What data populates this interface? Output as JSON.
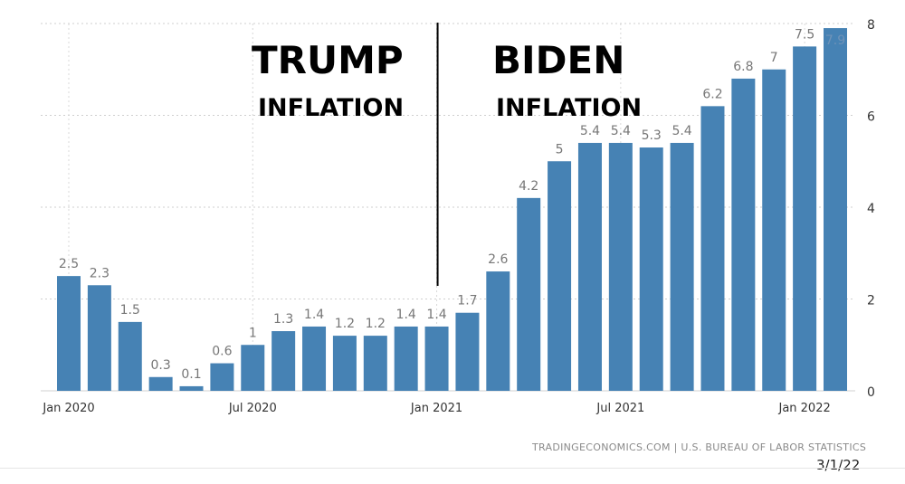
{
  "chart_data": {
    "type": "bar",
    "categories": [
      "Jan 2020",
      "Feb 2020",
      "Mar 2020",
      "Apr 2020",
      "May 2020",
      "Jun 2020",
      "Jul 2020",
      "Aug 2020",
      "Sep 2020",
      "Oct 2020",
      "Nov 2020",
      "Dec 2020",
      "Jan 2021",
      "Feb 2021",
      "Mar 2021",
      "Apr 2021",
      "May 2021",
      "Jun 2021",
      "Jul 2021",
      "Aug 2021",
      "Sep 2021",
      "Oct 2021",
      "Nov 2021",
      "Dec 2021",
      "Jan 2022",
      "Feb 2022"
    ],
    "values": [
      2.5,
      2.3,
      1.5,
      0.3,
      0.1,
      0.6,
      1,
      1.3,
      1.4,
      1.2,
      1.2,
      1.4,
      1.4,
      1.7,
      2.6,
      4.2,
      5,
      5.4,
      5.4,
      5.3,
      5.4,
      6.2,
      6.8,
      7,
      7.5,
      7.9
    ],
    "data_labels": [
      "2.5",
      "2.3",
      "1.5",
      "0.3",
      "0.1",
      "0.6",
      "1",
      "1.3",
      "1.4",
      "1.2",
      "1.2",
      "1.4",
      "1.4",
      "1.7",
      "2.6",
      "4.2",
      "5",
      "5.4",
      "5.4",
      "5.3",
      "5.4",
      "6.2",
      "6.8",
      "7",
      "7.5",
      "7.9"
    ],
    "x_tick_labels": [
      {
        "index": 0,
        "label": "Jan 2020"
      },
      {
        "index": 6,
        "label": "Jul 2020"
      },
      {
        "index": 12,
        "label": "Jan 2021"
      },
      {
        "index": 18,
        "label": "Jul 2021"
      },
      {
        "index": 24,
        "label": "Jan 2022"
      }
    ],
    "y_ticks": [
      0,
      2,
      4,
      6,
      8
    ],
    "ylim": [
      0,
      8
    ],
    "y_axis_side": "right",
    "grid": true,
    "bar_color": "#4682b4",
    "title": "",
    "xlabel": "",
    "ylabel": ""
  },
  "annotations": {
    "left_title": "TRUMP",
    "left_subtitle": "INFLATION",
    "right_title": "BIDEN",
    "right_subtitle": "INFLATION",
    "divider_at": "Jan 2021"
  },
  "footer": {
    "source": "TRADINGECONOMICS.COM | U.S. BUREAU OF LABOR STATISTICS",
    "date": "3/1/22"
  }
}
